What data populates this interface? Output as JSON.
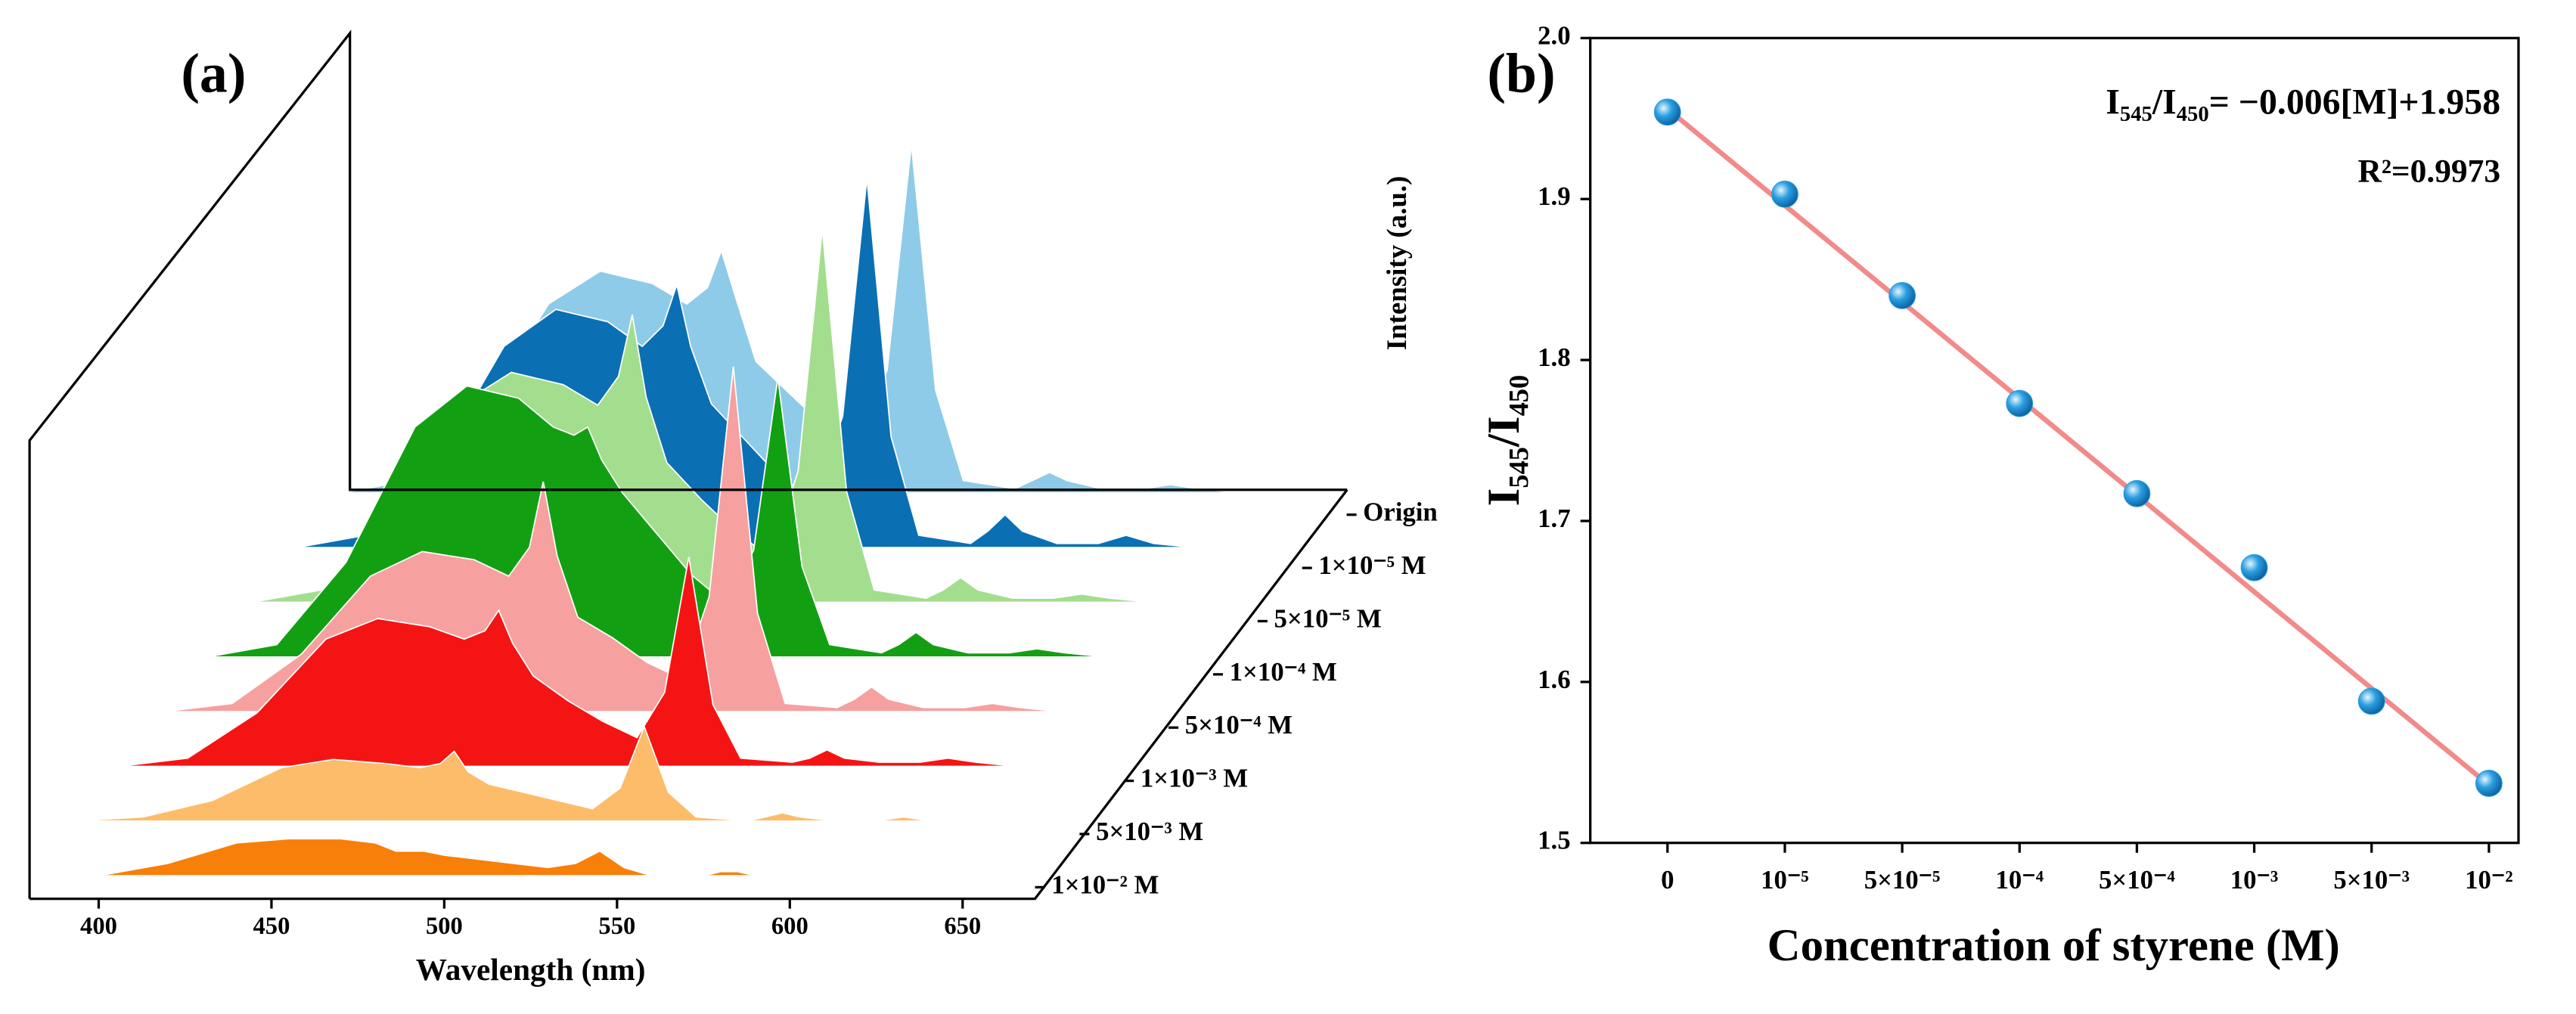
{
  "chart_data": [
    {
      "type": "waterfall",
      "panel_label": "(a)",
      "x_label": "Wavelength (nm)",
      "y_label": "Intensity (a.u.)",
      "x": [
        380,
        400,
        420,
        440,
        455,
        470,
        480,
        486,
        490,
        494,
        500,
        510,
        520,
        530,
        538,
        545,
        552,
        560,
        575,
        580,
        585,
        590,
        600,
        612,
        620,
        628,
        640,
        670
      ],
      "xlim": [
        380,
        670
      ],
      "xticks": [
        400,
        450,
        500,
        550,
        600,
        650
      ],
      "ylim": [
        0,
        100
      ],
      "series": [
        {
          "name": "Origin",
          "color": "#8ecbe8",
          "values": [
            0,
            3,
            19,
            46,
            54,
            51,
            46,
            50,
            59,
            48,
            32,
            24,
            16,
            11,
            30,
            85,
            25,
            3,
            1,
            3,
            5,
            3,
            1,
            1,
            2,
            1,
            0,
            0
          ]
        },
        {
          "name": "1×10⁻⁵ M",
          "color": "#0b6fb3",
          "values": [
            0,
            3,
            20,
            49,
            58,
            55,
            49,
            54,
            64,
            49,
            35,
            26,
            17,
            12,
            32,
            90,
            27,
            3,
            1,
            4,
            8,
            4,
            1,
            1,
            3,
            1,
            0,
            0
          ]
        },
        {
          "name": "5×10⁻⁵ M",
          "color": "#a3de8e",
          "values": [
            0,
            3,
            20,
            48,
            56,
            53,
            48,
            55,
            70,
            50,
            34,
            25,
            17,
            11,
            32,
            91,
            27,
            3,
            1,
            3,
            6,
            3,
            1,
            1,
            2,
            1,
            0,
            0
          ]
        },
        {
          "name": "1×10⁻⁴ M",
          "color": "#12a012",
          "values": [
            0,
            3,
            23,
            56,
            66,
            63,
            56,
            54,
            56,
            48,
            40,
            30,
            20,
            13,
            26,
            68,
            22,
            3,
            1,
            3,
            6,
            3,
            1,
            1,
            2,
            1,
            0,
            0
          ]
        },
        {
          "name": "5×10⁻⁴ M",
          "color": "#f6a0a0",
          "values": [
            0,
            2,
            14,
            33,
            39,
            37,
            33,
            40,
            56,
            38,
            23,
            18,
            12,
            8,
            28,
            84,
            24,
            2,
            1,
            3,
            6,
            3,
            1,
            1,
            2,
            1,
            0,
            0
          ]
        },
        {
          "name": "1×10⁻³ M",
          "color": "#f41414",
          "values": [
            0,
            2,
            13,
            31,
            36,
            34,
            31,
            33,
            38,
            30,
            22,
            16,
            11,
            7,
            18,
            51,
            15,
            2,
            1,
            2,
            4,
            2,
            1,
            1,
            2,
            1,
            0,
            0
          ]
        },
        {
          "name": "5×10⁻³ M",
          "color": "#fdbc6a",
          "values": [
            0,
            1,
            5,
            13,
            15,
            14,
            13,
            14,
            17,
            12,
            9,
            7,
            5,
            3,
            8,
            23,
            7,
            1,
            0,
            1,
            2,
            1,
            0,
            0,
            1,
            0,
            0,
            0
          ]
        },
        {
          "name": "1×10⁻² M",
          "color": "#f77f0a",
          "values": [
            0,
            0,
            3,
            8,
            9,
            9,
            8,
            6,
            6,
            6,
            5,
            4,
            3,
            2,
            3,
            6,
            2,
            0,
            0,
            1,
            1,
            0,
            0,
            0,
            0,
            0,
            0,
            0
          ]
        }
      ]
    },
    {
      "type": "scatter",
      "panel_label": "(b)",
      "x_label": "Concentration of styrene (M)",
      "y_label": "I₅₄₅/I₄₅₀",
      "categories": [
        "0",
        "10⁻⁵",
        "5×10⁻⁵",
        "10⁻⁴",
        "5×10⁻⁴",
        "10⁻³",
        "5×10⁻³",
        "10⁻²"
      ],
      "values": [
        1.954,
        1.903,
        1.84,
        1.773,
        1.717,
        1.671,
        1.588,
        1.537
      ],
      "color": "#2a9fe0",
      "fit": {
        "color": "#f28a8a",
        "start": 1.956,
        "end": 1.536
      },
      "annotations": [
        "I₅₄₅/I₄₅₀= −0.006[M]+1.958",
        "R²=0.9973"
      ],
      "ylim": [
        1.5,
        2.0
      ],
      "yticks": [
        1.5,
        1.6,
        1.7,
        1.8,
        1.9,
        {
          "value": 2.0,
          "label": "2.0"
        }
      ]
    }
  ]
}
